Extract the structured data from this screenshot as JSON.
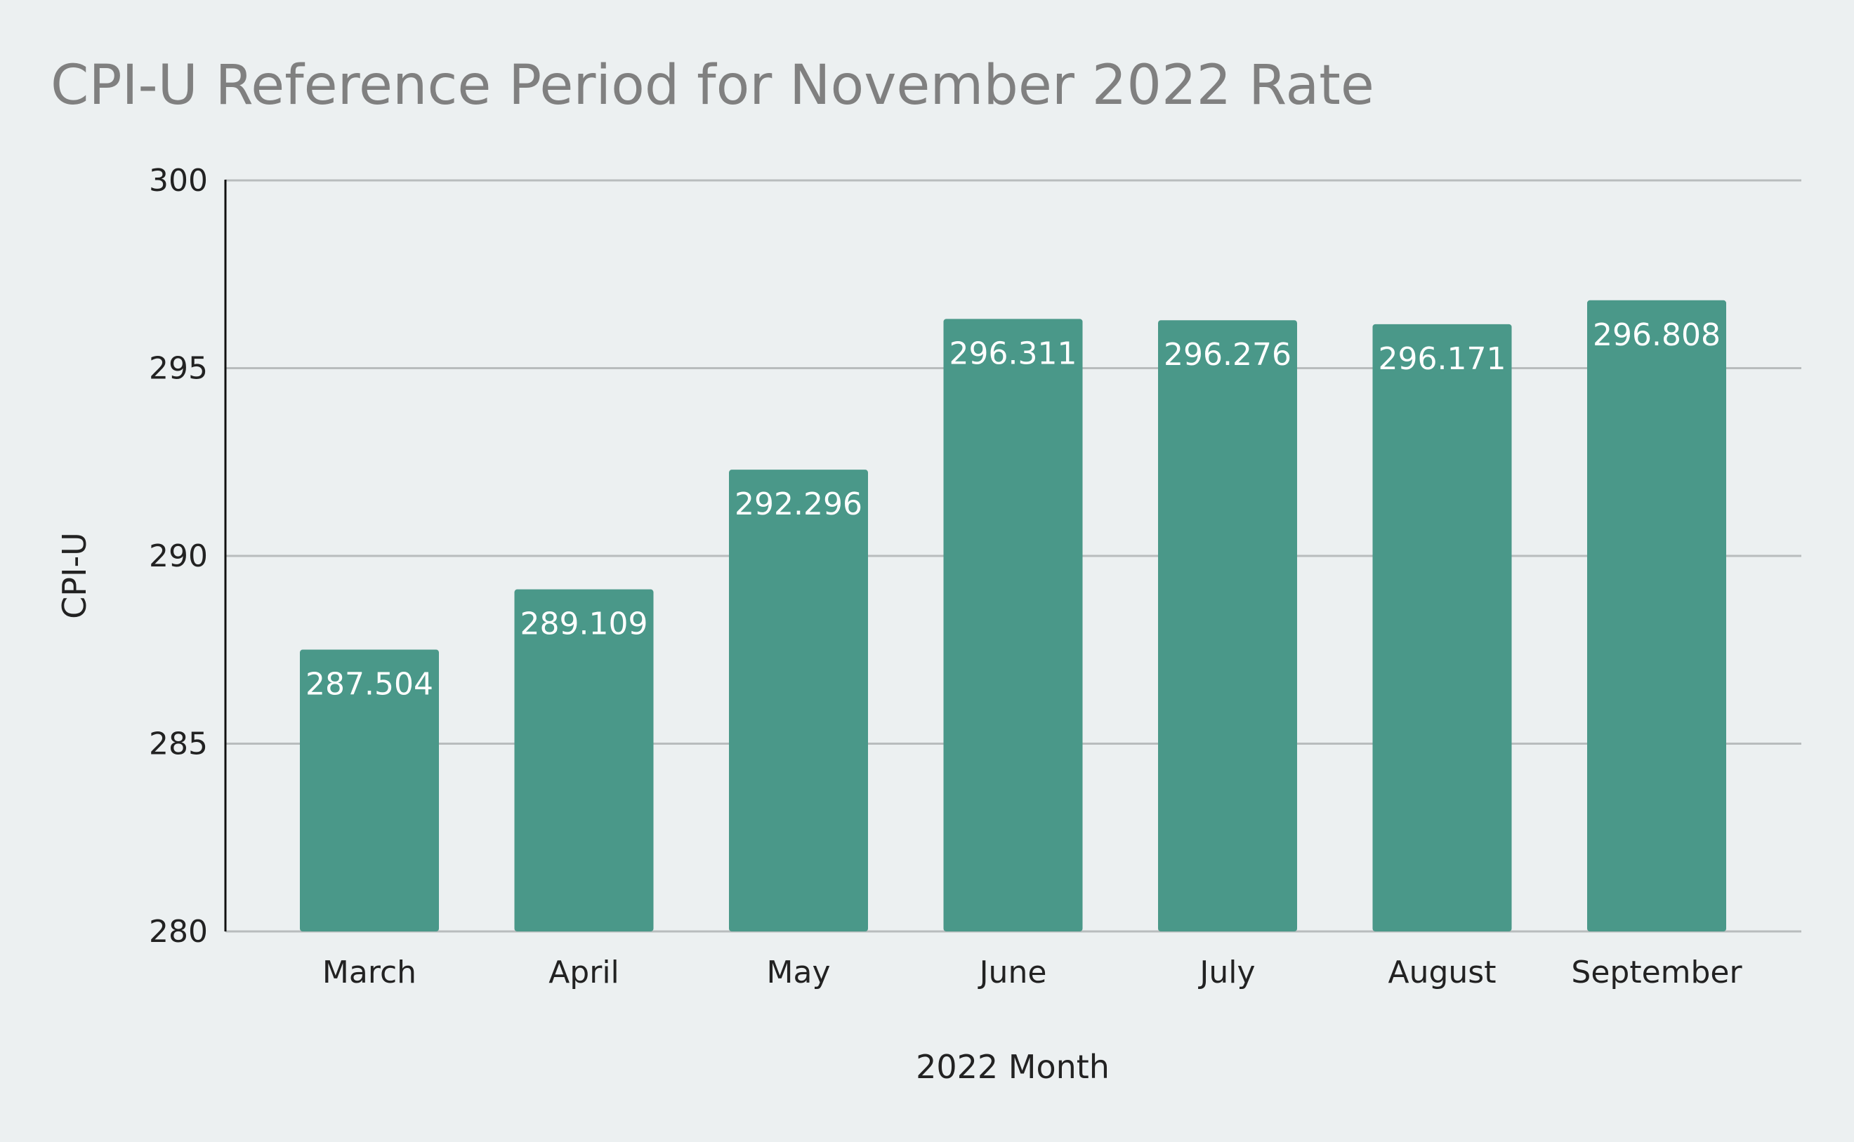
{
  "chart_data": {
    "type": "bar",
    "title": "CPI-U Reference Period for November 2022 Rate",
    "xlabel": "2022 Month",
    "ylabel": "CPI-U",
    "categories": [
      "March",
      "April",
      "May",
      "June",
      "July",
      "August",
      "September"
    ],
    "values": [
      287.504,
      289.109,
      292.296,
      296.311,
      296.276,
      296.171,
      296.808
    ],
    "data_labels": [
      "287.504",
      "289.109",
      "292.296",
      "296.311",
      "296.276",
      "296.171",
      "296.808"
    ],
    "ylim": [
      280,
      300
    ],
    "yticks": [
      280,
      285,
      290,
      295,
      300
    ],
    "ytick_labels": [
      "280",
      "285",
      "290",
      "295",
      "300"
    ],
    "grid": true,
    "legend": "none",
    "colors": {
      "bar": "#4a9889",
      "background": "#ecf0f1",
      "title": "#808080",
      "gridline": "#b8bcbd",
      "axis": "#111111",
      "text": "#222222",
      "data_label": "#ffffff"
    }
  }
}
